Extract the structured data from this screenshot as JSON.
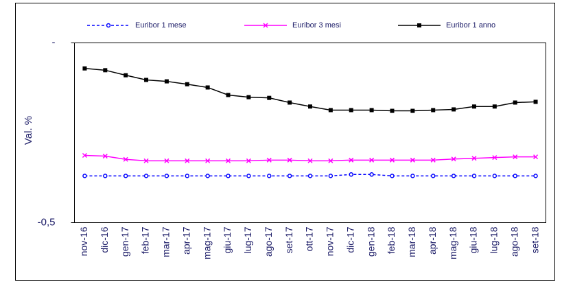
{
  "chart_data": {
    "type": "line",
    "y_label": "Val. %",
    "categories": [
      "nov-16",
      "dic-16",
      "gen-17",
      "feb-17",
      "mar-17",
      "apr-17",
      "mag-17",
      "giu-17",
      "lug-17",
      "ago-17",
      "set-17",
      "ott-17",
      "nov-17",
      "dic-17",
      "gen-18",
      "feb-18",
      "mar-18",
      "apr-18",
      "mag-18",
      "giu-18",
      "lug-18",
      "ago-18",
      "set-18"
    ],
    "series": [
      {
        "name": "Euribor 1 mese",
        "color": "#0000ff",
        "dashed": true,
        "marker": "circle",
        "values": [
          -0.37,
          -0.37,
          -0.37,
          -0.37,
          -0.37,
          -0.37,
          -0.37,
          -0.37,
          -0.37,
          -0.37,
          -0.37,
          -0.37,
          -0.37,
          -0.366,
          -0.366,
          -0.37,
          -0.37,
          -0.37,
          -0.37,
          -0.37,
          -0.37,
          -0.37,
          -0.37
        ]
      },
      {
        "name": "Euribor 3 mesi",
        "color": "#ff00ff",
        "dashed": false,
        "marker": "x",
        "values": [
          -0.313,
          -0.315,
          -0.324,
          -0.328,
          -0.328,
          -0.328,
          -0.328,
          -0.328,
          -0.328,
          -0.326,
          -0.326,
          -0.328,
          -0.328,
          -0.326,
          -0.326,
          -0.326,
          -0.326,
          -0.326,
          -0.323,
          -0.321,
          -0.319,
          -0.317,
          -0.317
        ]
      },
      {
        "name": "Euribor 1 anno",
        "color": "#000000",
        "dashed": false,
        "marker": "square",
        "values": [
          -0.071,
          -0.076,
          -0.09,
          -0.103,
          -0.107,
          -0.115,
          -0.124,
          -0.145,
          -0.151,
          -0.153,
          -0.166,
          -0.177,
          -0.187,
          -0.187,
          -0.187,
          -0.189,
          -0.189,
          -0.187,
          -0.185,
          -0.177,
          -0.177,
          -0.166,
          -0.164
        ]
      }
    ],
    "ylim": [
      -0.5,
      0
    ],
    "yticks": [
      {
        "value": -0.5,
        "label": "-0,5"
      },
      {
        "value": 0,
        "label": "-"
      }
    ]
  }
}
